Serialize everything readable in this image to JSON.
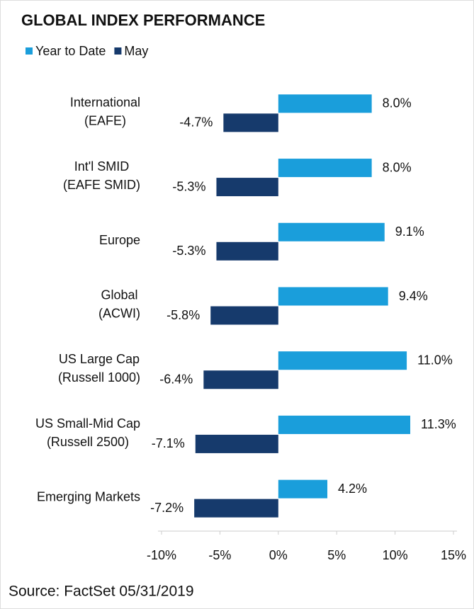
{
  "chart_data": {
    "type": "hbar",
    "title": "GLOBAL INDEX PERFORMANCE",
    "categories": [
      "International\n(EAFE)",
      "Int'l SMID\n(EAFE SMID)",
      "Europe",
      "Global\n(ACWI)",
      "US Large Cap\n(Russell 1000)",
      "US Small-Mid Cap\n(Russell 2500)",
      "Emerging Markets"
    ],
    "series": [
      {
        "name": "Year to Date",
        "color": "#1a9edb",
        "values": [
          8.0,
          8.0,
          9.1,
          9.4,
          11.0,
          11.3,
          4.2
        ],
        "value_labels": [
          "8.0%",
          "8.0%",
          "9.1%",
          "9.4%",
          "11.0%",
          "11.3%",
          "4.2%"
        ]
      },
      {
        "name": "May",
        "color": "#163a6c",
        "values": [
          -4.7,
          -5.3,
          -5.3,
          -5.8,
          -6.4,
          -7.1,
          -7.2
        ],
        "value_labels": [
          "-4.7%",
          "-5.3%",
          "-5.3%",
          "-5.8%",
          "-6.4%",
          "-7.1%",
          "-7.2%"
        ]
      }
    ],
    "xlim": [
      -10,
      15
    ],
    "xticks": [
      {
        "value": -10,
        "label": "-10%"
      },
      {
        "value": -5,
        "label": "-5%"
      },
      {
        "value": 0,
        "label": "0%"
      },
      {
        "value": 5,
        "label": "5%"
      },
      {
        "value": 10,
        "label": "10%"
      },
      {
        "value": 15,
        "label": "15%"
      }
    ],
    "legend": "top-left",
    "source": "Source: FactSet 05/31/2019"
  }
}
